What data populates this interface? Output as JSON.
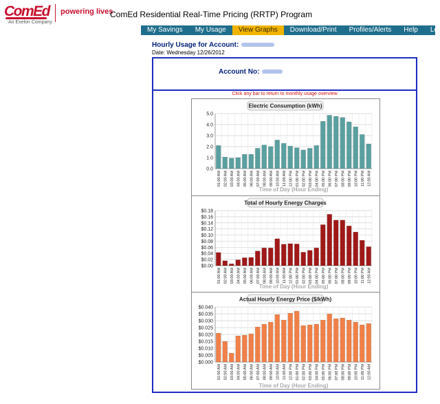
{
  "header": {
    "logo": "ComEd",
    "logo_sub": "An Exelon Company",
    "tagline": "powering lives",
    "title": "ComEd Residential Real-Time Pricing (RRTP) Program"
  },
  "nav": {
    "items": [
      "My Savings",
      "My Usage",
      "View Graphs",
      "Download/Print",
      "Profiles/Alerts",
      "Help",
      "Logout"
    ],
    "active": "View Graphs"
  },
  "account": {
    "title": "Hourly Usage for Account:",
    "date": "Date: Wednesday 12/26/2012",
    "account_no_label": "Account No:",
    "hint": "Click any bar to return to monthly usage overview"
  },
  "colors": {
    "nav": "#1f6e8c",
    "nav_active": "#f0b400",
    "border": "#1e2cc0",
    "kwh": "#5aa0a0",
    "charges": "#a01818",
    "price": "#f08048"
  },
  "chart_data": [
    {
      "type": "bar",
      "title": "Electric Consumption (kWh)",
      "xlabel": "Time of Day (Hour Ending)",
      "ylabel": "",
      "ylim": [
        0,
        5
      ],
      "yticks": [
        "0.0",
        "1.0",
        "2.0",
        "3.0",
        "4.0",
        "5.0"
      ],
      "categories": [
        "01:00 AM",
        "02:00 AM",
        "03:00 AM",
        "04:00 AM",
        "05:00 AM",
        "06:00 AM",
        "07:00 AM",
        "08:00 AM",
        "09:00 AM",
        "10:00 AM",
        "11:00 AM",
        "12:00 PM",
        "01:00 PM",
        "02:00 PM",
        "03:00 PM",
        "04:00 PM",
        "05:00 PM",
        "06:00 PM",
        "07:00 PM",
        "08:00 PM",
        "09:00 PM",
        "10:00 PM",
        "11:00 PM",
        "12:00 AM"
      ],
      "values": [
        2.1,
        1.05,
        0.95,
        1.0,
        1.3,
        1.3,
        1.85,
        2.15,
        2.0,
        2.6,
        2.3,
        2.05,
        1.9,
        1.7,
        1.85,
        2.1,
        4.3,
        4.85,
        4.75,
        4.65,
        4.25,
        3.8,
        3.1,
        2.25
      ],
      "color": "#5aa0a0"
    },
    {
      "type": "bar",
      "title": "Total of Hourly Energy Charges",
      "xlabel": "Time of Day (Hour Ending)",
      "ylabel": "",
      "ylim": [
        0,
        0.18
      ],
      "yticks": [
        "$0.00",
        "$0.02",
        "$0.04",
        "$0.06",
        "$0.08",
        "$0.10",
        "$0.12",
        "$0.14",
        "$0.16",
        "$0.18"
      ],
      "categories": [
        "01:00 AM",
        "02:00 AM",
        "03:00 AM",
        "04:00 AM",
        "05:00 AM",
        "06:00 AM",
        "07:00 AM",
        "08:00 AM",
        "09:00 AM",
        "10:00 AM",
        "11:00 AM",
        "12:00 PM",
        "01:00 PM",
        "02:00 PM",
        "03:00 PM",
        "04:00 PM",
        "05:00 PM",
        "06:00 PM",
        "07:00 PM",
        "08:00 PM",
        "09:00 PM",
        "10:00 PM",
        "11:00 PM",
        "12:00 AM"
      ],
      "values": [
        0.043,
        0.016,
        0.006,
        0.019,
        0.026,
        0.027,
        0.048,
        0.058,
        0.058,
        0.088,
        0.07,
        0.072,
        0.071,
        0.044,
        0.05,
        0.058,
        0.134,
        0.168,
        0.149,
        0.149,
        0.13,
        0.11,
        0.083,
        0.062
      ],
      "color": "#a01818"
    },
    {
      "type": "bar",
      "title": "Actual Hourly Energy Price ($/kWh)",
      "xlabel": "Time of Day (Hour Ending)",
      "ylabel": "",
      "ylim": [
        0,
        0.04
      ],
      "yticks": [
        "$0.000",
        "$0.005",
        "$0.010",
        "$0.015",
        "$0.020",
        "$0.025",
        "$0.030",
        "$0.035",
        "$0.040"
      ],
      "categories": [
        "01:00 AM",
        "02:00 AM",
        "03:00 AM",
        "04:00 AM",
        "05:00 AM",
        "06:00 AM",
        "07:00 AM",
        "08:00 AM",
        "09:00 AM",
        "10:00 AM",
        "11:00 AM",
        "12:00 PM",
        "01:00 PM",
        "02:00 PM",
        "03:00 PM",
        "04:00 PM",
        "05:00 PM",
        "06:00 PM",
        "07:00 PM",
        "08:00 PM",
        "09:00 PM",
        "10:00 PM",
        "11:00 PM",
        "12:00 AM"
      ],
      "values": [
        0.021,
        0.015,
        0.0065,
        0.019,
        0.0195,
        0.0205,
        0.0255,
        0.0275,
        0.029,
        0.0345,
        0.0305,
        0.0355,
        0.037,
        0.0265,
        0.027,
        0.0275,
        0.0305,
        0.035,
        0.0315,
        0.032,
        0.0305,
        0.029,
        0.027,
        0.028
      ],
      "color": "#f08048"
    }
  ]
}
